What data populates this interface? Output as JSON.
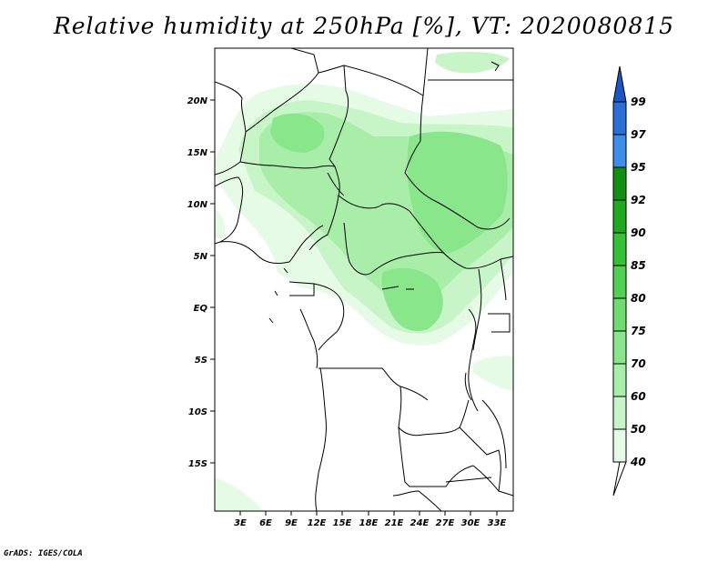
{
  "title": "Relative humidity at 250hPa [%], VT: 2020080815",
  "credit": "GrADS: IGES/COLA",
  "map": {
    "lat_labels": [
      "20N",
      "15N",
      "10N",
      "5N",
      "EQ",
      "5S",
      "10S",
      "15S"
    ],
    "lon_labels": [
      "3E",
      "6E",
      "9E",
      "12E",
      "15E",
      "18E",
      "21E",
      "24E",
      "27E",
      "30E",
      "33E"
    ]
  },
  "colorbar": {
    "labels": [
      "40",
      "50",
      "60",
      "70",
      "75",
      "80",
      "85",
      "90",
      "92",
      "95",
      "97",
      "99"
    ],
    "colors": [
      "#ffffff",
      "#e6fbe6",
      "#c8f5c8",
      "#a8eea8",
      "#8ae68a",
      "#6edc6e",
      "#52d052",
      "#36c036",
      "#20a820",
      "#128f12",
      "#3d8ee8",
      "#2a6fd6",
      "#1a56c4"
    ]
  }
}
